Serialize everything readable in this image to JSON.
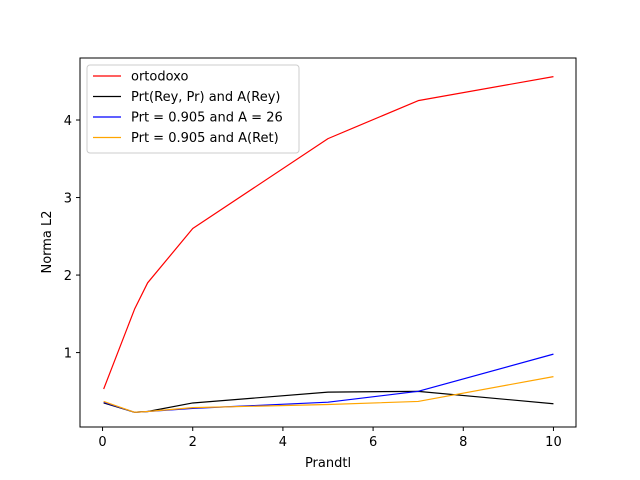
{
  "chart_data": {
    "type": "line",
    "xlabel": "Prandtl",
    "ylabel": "Norma L2",
    "xlim": [
      -0.5,
      10.5
    ],
    "ylim": [
      0.04,
      4.8
    ],
    "xticks": [
      0,
      2,
      4,
      6,
      8,
      10
    ],
    "yticks": [
      1,
      2,
      3,
      4
    ],
    "grid": false,
    "legend_position": "upper-left",
    "x": [
      0.025,
      0.71,
      1.0,
      2.0,
      5.0,
      7.0,
      10.0
    ],
    "series": [
      {
        "name": "ortodoxo",
        "color": "#ff0000",
        "values": [
          0.53,
          1.56,
          1.9,
          2.6,
          3.76,
          4.25,
          4.56
        ]
      },
      {
        "name": "Prt(Rey, Pr) and A(Rey)",
        "color": "#000000",
        "values": [
          0.35,
          0.23,
          0.24,
          0.35,
          0.49,
          0.5,
          0.34
        ]
      },
      {
        "name": "Prt = 0.905 and A = 26",
        "color": "#0000ff",
        "values": [
          0.36,
          0.23,
          0.24,
          0.28,
          0.36,
          0.5,
          0.98
        ]
      },
      {
        "name": "Prt = 0.905 and A(Ret)",
        "color": "#ffa500",
        "values": [
          0.37,
          0.23,
          0.24,
          0.29,
          0.33,
          0.37,
          0.69
        ]
      }
    ]
  }
}
